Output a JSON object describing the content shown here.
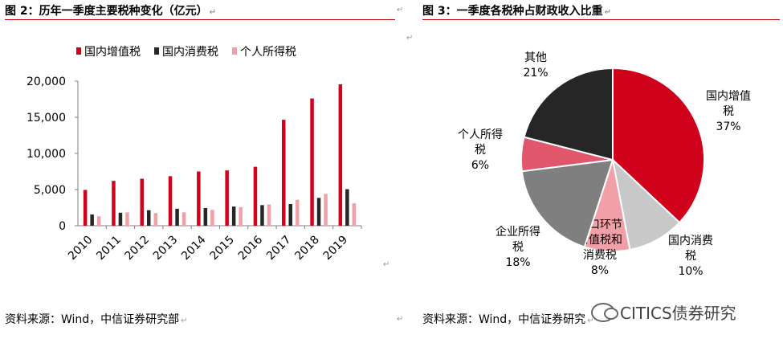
{
  "left": {
    "title": "图 2：历年一季度主要税种变化（亿元）",
    "source": "资料来源：Wind，中信证券研究部"
  },
  "right": {
    "title": "图 3：一季度各税种占财政收入比重",
    "source": "资料来源：Wind，中信证券研究"
  },
  "paragraph_mark": "↵",
  "watermark": "CITICS债券研究",
  "chart_data": [
    {
      "type": "bar",
      "title": "历年一季度主要税种变化（亿元）",
      "categories": [
        "2010",
        "2011",
        "2012",
        "2013",
        "2014",
        "2015",
        "2016",
        "2017",
        "2018",
        "2019"
      ],
      "series": [
        {
          "name": "国内增值税",
          "color": "#d0021b",
          "values": [
            4950,
            6200,
            6500,
            6850,
            7500,
            7650,
            8150,
            14650,
            17600,
            19550
          ]
        },
        {
          "name": "国内消费税",
          "color": "#262626",
          "values": [
            1550,
            1800,
            2150,
            2350,
            2450,
            2650,
            2850,
            3000,
            3850,
            5050
          ]
        },
        {
          "name": "个人所得税",
          "color": "#f2a0a8",
          "values": [
            1300,
            1850,
            1750,
            1850,
            2200,
            2550,
            2950,
            3600,
            4400,
            3100
          ]
        }
      ],
      "yticks": [
        "0",
        "5,000",
        "10,000",
        "15,000",
        "20,000"
      ],
      "ylim": [
        0,
        20000
      ],
      "legend": "top",
      "grid": false
    },
    {
      "type": "pie",
      "title": "一季度各税种占财政收入比重",
      "slices": [
        {
          "label": "国内增值税",
          "value": 37,
          "pct": "37%",
          "color": "#d0021b"
        },
        {
          "label": "国内消费税",
          "value": 10,
          "pct": "10%",
          "color": "#c8c8c8"
        },
        {
          "label": "进口环节增值税和消费税",
          "value": 8,
          "pct": "8%",
          "color": "#f2a0a8"
        },
        {
          "label": "企业所得税",
          "value": 18,
          "pct": "18%",
          "color": "#7f7f7f"
        },
        {
          "label": "个人所得税",
          "value": 6,
          "pct": "6%",
          "color": "#e0566b"
        },
        {
          "label": "其他",
          "value": 21,
          "pct": "21%",
          "color": "#262626"
        }
      ],
      "label_lines": [
        [
          "国内增值",
          "税",
          "37%"
        ],
        [
          "国内消费",
          "税",
          "10%"
        ],
        [
          "进口环节",
          "增值税和",
          "消费税",
          "8%"
        ],
        [
          "企业所得",
          "税",
          "18%"
        ],
        [
          "个人所得",
          "税",
          "6%"
        ],
        [
          "其他",
          "21%"
        ]
      ]
    }
  ]
}
